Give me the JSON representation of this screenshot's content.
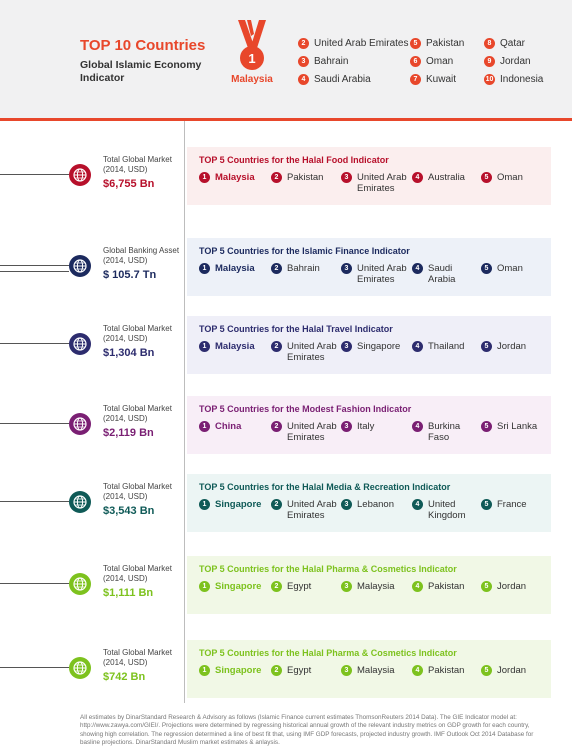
{
  "header": {
    "title": "TOP 10 Countries",
    "subtitle": "Global Islamic Economy Indicator",
    "medal_rank": "1",
    "medal_country": "Malaysia",
    "accent_color": "#e8472b",
    "ranks": [
      {
        "num": "2",
        "name": "United Arab Emirates"
      },
      {
        "num": "3",
        "name": "Bahrain"
      },
      {
        "num": "4",
        "name": "Saudi Arabia"
      },
      {
        "num": "5",
        "name": "Pakistan"
      },
      {
        "num": "6",
        "name": "Oman"
      },
      {
        "num": "7",
        "name": "Kuwait"
      },
      {
        "num": "8",
        "name": "Qatar"
      },
      {
        "num": "9",
        "name": "Jordan"
      },
      {
        "num": "10",
        "name": "Indonesia"
      }
    ]
  },
  "sectors": [
    {
      "label": "Total Global Market (2014, USD)",
      "value": "$6,755 Bn",
      "color": "#b7102b",
      "bg": "#fbeeee",
      "icon": "globe-icon",
      "title": "TOP 5 Countries for the Halal Food Indicator",
      "countries": [
        {
          "num": "1",
          "name": "Malaysia"
        },
        {
          "num": "2",
          "name": "Pakistan"
        },
        {
          "num": "3",
          "name": "United Arab Emirates"
        },
        {
          "num": "4",
          "name": "Australia"
        },
        {
          "num": "5",
          "name": "Oman"
        }
      ]
    },
    {
      "label": "Global Banking Asset (2014, USD)",
      "value": "$ 105.7 Tn",
      "color": "#1c2a5e",
      "bg": "#edf1f8",
      "icon": "globe-icon",
      "title": "TOP 5 Countries for the Islamic Finance Indicator",
      "countries": [
        {
          "num": "1",
          "name": "Malaysia"
        },
        {
          "num": "2",
          "name": "Bahrain"
        },
        {
          "num": "3",
          "name": "United Arab Emirates"
        },
        {
          "num": "4",
          "name": "Saudi Arabia"
        },
        {
          "num": "5",
          "name": "Oman"
        }
      ]
    },
    {
      "label": "Total Global Market (2014, USD)",
      "value": "$1,304 Bn",
      "color": "#2d2c6e",
      "bg": "#efeff8",
      "icon": "globe-icon",
      "title": "TOP 5 Countries for the Halal Travel Indicator",
      "countries": [
        {
          "num": "1",
          "name": "Malaysia"
        },
        {
          "num": "2",
          "name": "United Arab Emirates"
        },
        {
          "num": "3",
          "name": "Singapore"
        },
        {
          "num": "4",
          "name": "Thailand"
        },
        {
          "num": "5",
          "name": "Jordan"
        }
      ]
    },
    {
      "label": "Total Global Market (2014, USD)",
      "value": "$2,119 Bn",
      "color": "#7a1f73",
      "bg": "#f8eef7",
      "icon": "globe-icon",
      "title": "TOP 5 Countries for the Modest Fashion Indicator",
      "countries": [
        {
          "num": "1",
          "name": "China"
        },
        {
          "num": "2",
          "name": "United Arab Emirates"
        },
        {
          "num": "3",
          "name": "Italy"
        },
        {
          "num": "4",
          "name": "Burkina Faso"
        },
        {
          "num": "5",
          "name": "Sri Lanka"
        }
      ]
    },
    {
      "label": "Total Global Market (2014, USD)",
      "value": "$3,543 Bn",
      "color": "#0f5a57",
      "bg": "#ecf5f4",
      "icon": "globe-icon",
      "title": "TOP 5 Countries for the Halal Media & Recreation Indicator",
      "countries": [
        {
          "num": "1",
          "name": "Singapore"
        },
        {
          "num": "2",
          "name": "United Arab Emirates"
        },
        {
          "num": "3",
          "name": "Lebanon"
        },
        {
          "num": "4",
          "name": "United Kingdom"
        },
        {
          "num": "5",
          "name": "France"
        }
      ]
    },
    {
      "label": "Total Global Market (2014, USD)",
      "value": "$1,111 Bn",
      "color": "#7dc21e",
      "bg": "#f1f8e6",
      "icon": "globe-icon",
      "title": "TOP 5 Countries for the Halal Pharma & Cosmetics Indicator",
      "countries": [
        {
          "num": "1",
          "name": "Singapore"
        },
        {
          "num": "2",
          "name": "Egypt"
        },
        {
          "num": "3",
          "name": "Malaysia"
        },
        {
          "num": "4",
          "name": "Pakistan"
        },
        {
          "num": "5",
          "name": "Jordan"
        }
      ]
    },
    {
      "label": "Total Global Market (2014, USD)",
      "value": "$742 Bn",
      "color": "#7dc21e",
      "bg": "#f1f8e6",
      "icon": "globe-icon",
      "title": "TOP 5 Countries for the Halal Pharma & Cosmetics Indicator",
      "countries": [
        {
          "num": "1",
          "name": "Singapore"
        },
        {
          "num": "2",
          "name": "Egypt"
        },
        {
          "num": "3",
          "name": "Malaysia"
        },
        {
          "num": "4",
          "name": "Pakistan"
        },
        {
          "num": "5",
          "name": "Jordan"
        }
      ]
    }
  ],
  "footnote": "All estimates by DinarStandard Research & Advisory as follows (Islamic Finance current estimates ThomsonReuters 2014 Data). The GIE Indicator model at: http://www.zawya.com/GIEI/. Projections were determined by regressing historical annual growth of the relevant industry metrics on GDP growth for each country, showing high correlation. The regression determined a line of best fit that, using IMF GDP forecasts, projected industry growth. IMF Outlook Oct 2014 Database for basline projections. DinarStandard Muslim market estimates & anlaysis."
}
